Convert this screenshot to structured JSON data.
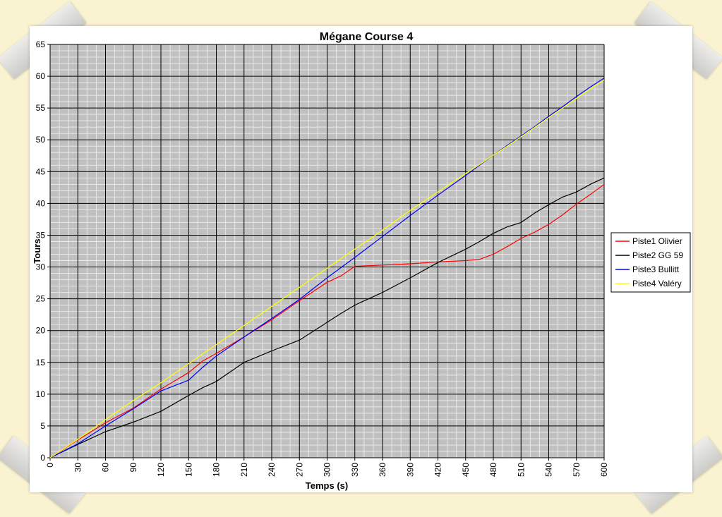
{
  "chart_data": {
    "type": "line",
    "title": "Mégane Course 4",
    "xlabel": "Temps (s)",
    "ylabel": "Tours",
    "xlim": [
      0,
      600
    ],
    "ylim": [
      0,
      65
    ],
    "x_ticks": [
      0,
      30,
      60,
      90,
      120,
      150,
      180,
      210,
      240,
      270,
      300,
      330,
      360,
      390,
      420,
      450,
      480,
      510,
      540,
      570,
      600
    ],
    "y_ticks": [
      0,
      5,
      10,
      15,
      20,
      25,
      30,
      35,
      40,
      45,
      50,
      55,
      60,
      65
    ],
    "grid": true,
    "legend_position": "right",
    "x": [
      0,
      30,
      60,
      90,
      120,
      150,
      165,
      180,
      210,
      240,
      270,
      300,
      315,
      330,
      360,
      390,
      420,
      450,
      465,
      480,
      495,
      510,
      525,
      540,
      555,
      570,
      585,
      600
    ],
    "series": [
      {
        "name": "Piste1 Olivier",
        "color": "#ff0000",
        "values": [
          0,
          2.8,
          5.5,
          7.8,
          10.8,
          13.4,
          15.2,
          16.4,
          19.0,
          21.7,
          24.7,
          27.6,
          28.6,
          30.1,
          30.3,
          30.5,
          30.8,
          31.0,
          31.2,
          32.0,
          33.2,
          34.5,
          35.5,
          36.7,
          38.2,
          39.9,
          41.4,
          43.0
        ]
      },
      {
        "name": "Piste2 GG 59",
        "color": "#000000",
        "values": [
          0,
          2.1,
          4.1,
          5.6,
          7.3,
          9.8,
          11.0,
          12.0,
          15.0,
          16.8,
          18.5,
          21.3,
          22.7,
          24.0,
          26.0,
          28.3,
          30.7,
          32.8,
          34.0,
          35.3,
          36.3,
          37.0,
          38.5,
          39.8,
          41.0,
          41.8,
          43.0,
          44.0
        ]
      },
      {
        "name": "Piste3 Bullitt",
        "color": "#0000ff",
        "values": [
          0,
          2.2,
          5.0,
          7.7,
          10.5,
          12.2,
          14.2,
          16.0,
          19.0,
          21.9,
          24.9,
          28.3,
          29.9,
          31.5,
          34.8,
          38.1,
          41.3,
          44.4,
          46.0,
          47.6,
          49.1,
          50.6,
          52.1,
          53.7,
          55.2,
          56.8,
          58.3,
          59.7
        ]
      },
      {
        "name": "Piste4 Valéry",
        "color": "#ffff00",
        "values": [
          0,
          2.9,
          6.0,
          9.0,
          11.8,
          14.8,
          16.3,
          17.8,
          20.8,
          23.8,
          26.8,
          29.8,
          31.3,
          32.8,
          35.8,
          38.9,
          41.8,
          44.7,
          46.1,
          47.6,
          49.0,
          50.5,
          52.0,
          53.5,
          55.0,
          56.5,
          58.0,
          59.4
        ]
      }
    ]
  }
}
